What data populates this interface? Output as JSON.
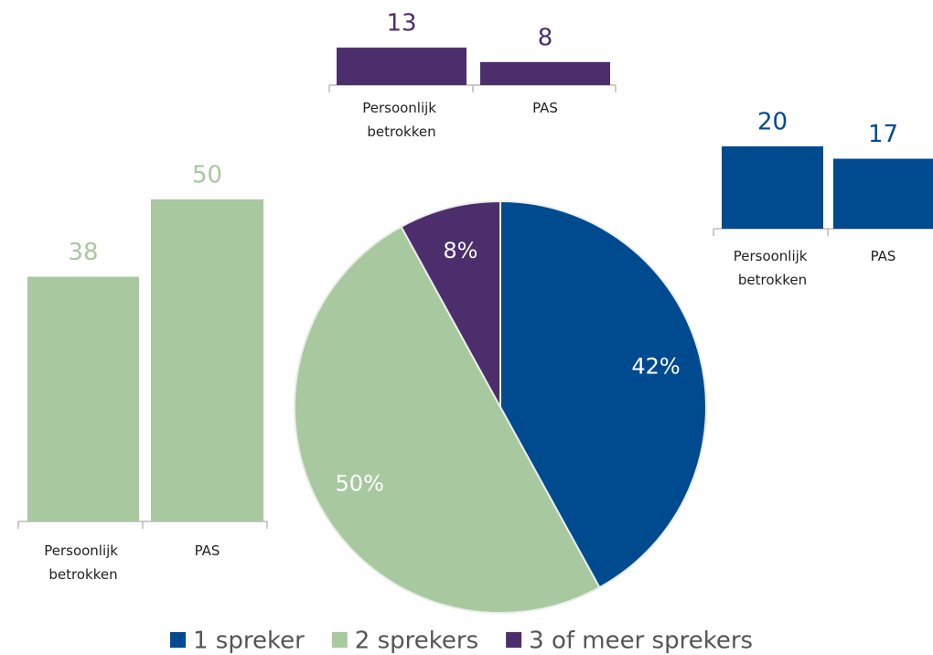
{
  "chart_data": [
    {
      "type": "pie",
      "categories": [
        "1 spreker",
        "2 sprekers",
        "3 of meer sprekers"
      ],
      "values": [
        42,
        50,
        8
      ],
      "value_labels": [
        "42%",
        "50%",
        "8%"
      ],
      "colors": [
        "#004a8f",
        "#a8c8a0",
        "#4b2e6b"
      ]
    },
    {
      "type": "bar",
      "categories": [
        "Persoonlijk betrokken",
        "PAS"
      ],
      "values": [
        38,
        50
      ],
      "color": "#a8c8a0"
    },
    {
      "type": "bar",
      "categories": [
        "Persoonlijk betrokken",
        "PAS"
      ],
      "values": [
        13,
        8
      ],
      "color": "#4b2e6b"
    },
    {
      "type": "bar",
      "categories": [
        "Persoonlijk betrokken",
        "PAS"
      ],
      "values": [
        20,
        17
      ],
      "color": "#004a8f"
    }
  ]
}
